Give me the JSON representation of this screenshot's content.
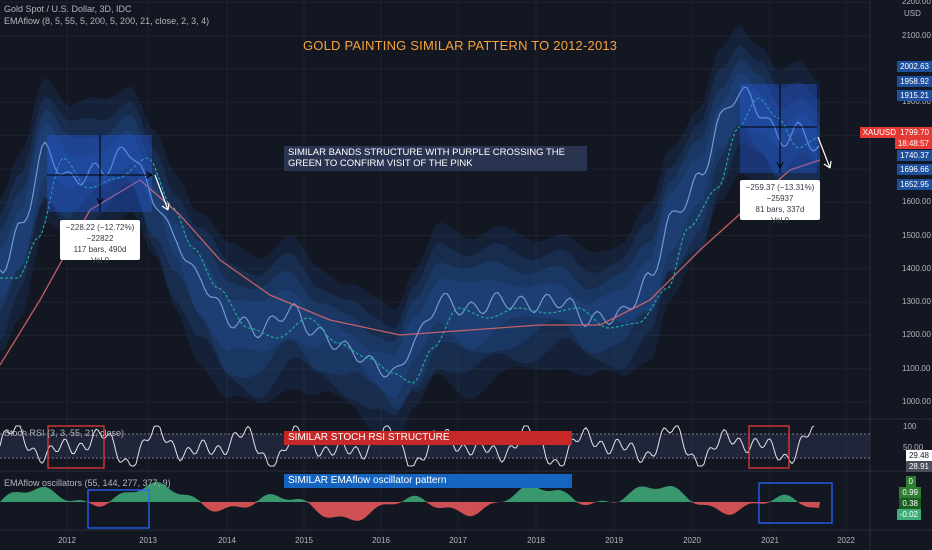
{
  "legend": {
    "symbol": "Gold Spot / U.S. Dollar, 3D, IDC",
    "emaflow": "EMAflow (8, 5, 55, 5, 200, 5, 200, 21, close, 2, 3, 4)",
    "stoch_rsi": "Stoch RSI (3, 3, 55, 21, close)",
    "emaflow_osc": "EMAflow oscillators (55, 144, 277, 377, 9)"
  },
  "annotations": {
    "title": "GOLD PAINTING SIMILAR PATTERN TO 2012-2013",
    "bands_note": "SIMILAR BANDS STRUCTURE WITH PURPLE CROSSING THE GREEN TO CONFIRM VISIT OF THE PINK",
    "stoch_label": "SIMILAR STOCH RSI STRUCTURE",
    "osc_label": "SIMILAR EMAflow oscillator pattern"
  },
  "measure_left": {
    "line1": "−228.22 (−12.72%) −22822",
    "line2": "117 bars, 490d",
    "line3": "Vol 0"
  },
  "measure_right": {
    "line1": "−259.37 (−13.31%) −25937",
    "line2": "81 bars, 337d",
    "line3": "Vol 0"
  },
  "price_axis": {
    "currency": "USD",
    "ticks": [
      "2200.00",
      "2100.00",
      "2000.00",
      "1900.00",
      "1800.00",
      "1700.00",
      "1600.00",
      "1500.00",
      "1400.00",
      "1300.00",
      "1200.00",
      "1100.00",
      "1000.00"
    ]
  },
  "price_badges": {
    "b1": "2002.63",
    "b2": "1958.92",
    "b3": "1915.21",
    "symbol_tag": "XAUUSD",
    "last_price": "1799.70",
    "countdown": "18:48:57",
    "b4": "1740.37",
    "b5": "1696.66",
    "b6": "1652.95"
  },
  "stoch_axis": {
    "top": "100",
    "mid": "50.00",
    "value_a": "29.48",
    "value_b": "28.91"
  },
  "osc_axis": {
    "v1": "0",
    "v2": "0.99",
    "v3": "0.38",
    "v4": "-0.02"
  },
  "time_axis": [
    "2012",
    "2013",
    "2014",
    "2015",
    "2016",
    "2017",
    "2018",
    "2019",
    "2020",
    "2021",
    "2022"
  ],
  "colors": {
    "background": "#131722",
    "band_fill": "#1f4a8a",
    "ema_fast": "#7ea3d9",
    "ema_mid": "#26a69a",
    "ema_slow": "#e06a6a",
    "osc_green": "#3fae7a",
    "osc_red": "#f05a5a",
    "stoch_box": "#e53935",
    "osc_box": "#2962ff",
    "label_red": "#c62828",
    "label_blue": "#1565c0",
    "badge_blue": "#1e4f9c",
    "badge_red": "#e53935"
  }
}
